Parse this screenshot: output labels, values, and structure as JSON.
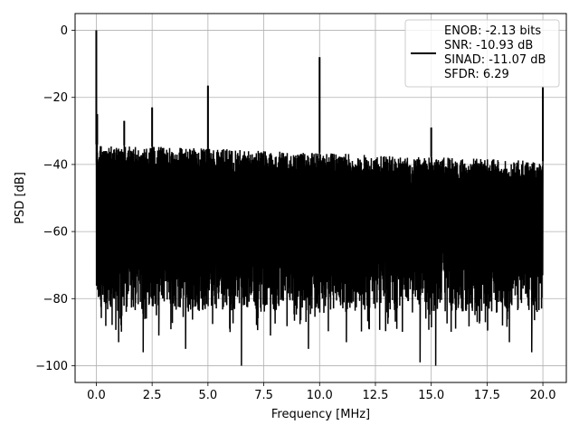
{
  "chart_data": {
    "type": "line",
    "title": "",
    "xlabel": "Frequency [MHz]",
    "ylabel": "PSD [dB]",
    "xlim": [
      -0.95,
      21.05
    ],
    "ylim": [
      -105,
      5
    ],
    "xticks": [
      0.0,
      2.5,
      5.0,
      7.5,
      10.0,
      12.5,
      15.0,
      17.5,
      20.0
    ],
    "xtick_labels": [
      "0.0",
      "2.5",
      "5.0",
      "7.5",
      "10.0",
      "12.5",
      "15.0",
      "17.5",
      "20.0"
    ],
    "yticks": [
      0,
      -20,
      -40,
      -60,
      -80,
      -100
    ],
    "ytick_labels": [
      "0",
      "−20",
      "−40",
      "−60",
      "−80",
      "−100"
    ],
    "grid": true,
    "line_color": "#000000",
    "legend": {
      "placement": "top-right",
      "entries": [
        "ENOB: -2.13 bits",
        "SNR: -10.93 dB",
        "SINAD: -11.07 dB",
        "SFDR: 6.29"
      ]
    },
    "noise_floor": {
      "x_range": [
        0.0,
        20.0
      ],
      "upper_envelope": [
        {
          "x": 0.0,
          "y": -34
        },
        {
          "x": 20.0,
          "y": -39
        }
      ],
      "lower_envelope": [
        {
          "x": 0.0,
          "y": -84
        },
        {
          "x": 20.0,
          "y": -84
        }
      ],
      "deepest_nulls": [
        {
          "x": 1.0,
          "y": -93
        },
        {
          "x": 2.1,
          "y": -96
        },
        {
          "x": 2.8,
          "y": -91
        },
        {
          "x": 4.0,
          "y": -95
        },
        {
          "x": 6.5,
          "y": -100
        },
        {
          "x": 7.8,
          "y": -91
        },
        {
          "x": 9.5,
          "y": -95
        },
        {
          "x": 11.2,
          "y": -93
        },
        {
          "x": 14.5,
          "y": -99
        },
        {
          "x": 15.2,
          "y": -100
        },
        {
          "x": 18.5,
          "y": -93
        },
        {
          "x": 19.5,
          "y": -96
        }
      ]
    },
    "peaks": [
      {
        "x": 0.0,
        "y": 0
      },
      {
        "x": 0.04,
        "y": -25
      },
      {
        "x": 1.25,
        "y": -27
      },
      {
        "x": 2.5,
        "y": -23
      },
      {
        "x": 5.0,
        "y": -16.5
      },
      {
        "x": 10.0,
        "y": -8
      },
      {
        "x": 15.0,
        "y": -29
      },
      {
        "x": 20.0,
        "y": -17
      }
    ]
  }
}
